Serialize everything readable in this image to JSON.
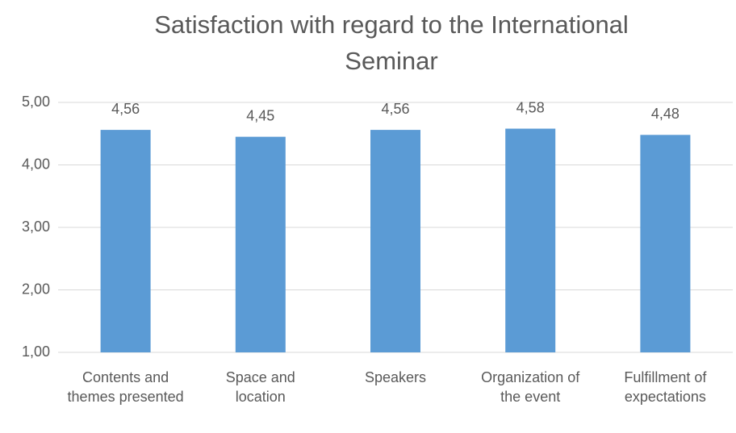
{
  "chart_data": {
    "type": "bar",
    "title": "Satisfaction with regard to the International Seminar",
    "categories": [
      "Contents and themes presented",
      "Space and location",
      "Speakers",
      "Organization of the event",
      "Fulfillment of expectations"
    ],
    "values": [
      4.56,
      4.45,
      4.56,
      4.58,
      4.48
    ],
    "value_labels": [
      "4,56",
      "4,45",
      "4,56",
      "4,58",
      "4,48"
    ],
    "color": "#5b9bd5",
    "ylim": [
      1,
      5
    ],
    "yticks": [
      {
        "value": 1,
        "label": "1,00"
      },
      {
        "value": 2,
        "label": "2,00"
      },
      {
        "value": 3,
        "label": "3,00"
      },
      {
        "value": 4,
        "label": "4,00"
      },
      {
        "value": 5,
        "label": "5,00"
      }
    ],
    "grid": true
  }
}
